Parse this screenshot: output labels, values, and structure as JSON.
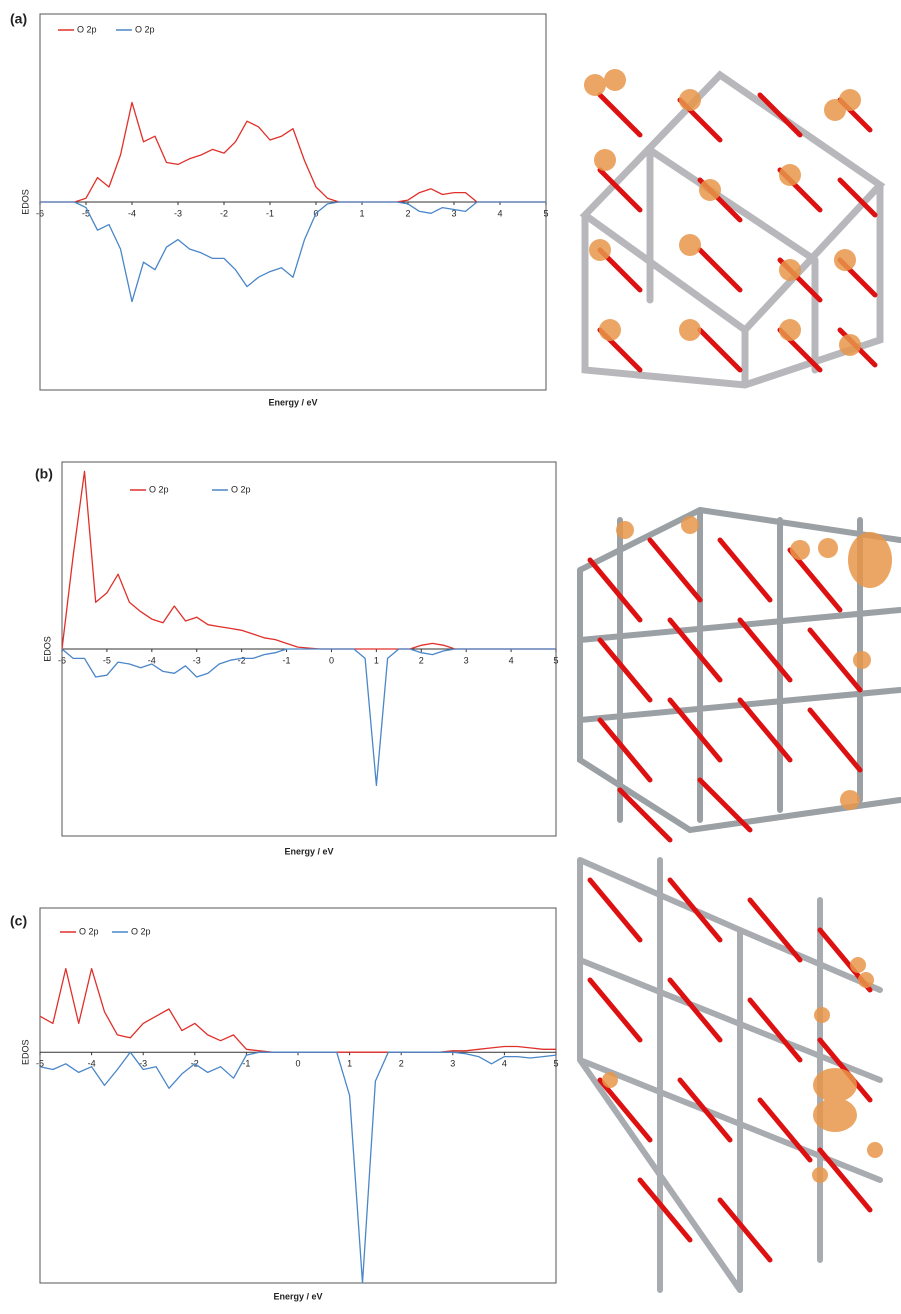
{
  "chart_data": [
    {
      "type": "line",
      "panel_label": "(a)",
      "x_label": "Energy / eV",
      "y_label": "EDOS",
      "xlim": [
        -6,
        5
      ],
      "xticks": [
        -6,
        -5,
        -4,
        -3,
        -2,
        -1,
        0,
        1,
        2,
        3,
        4,
        5
      ],
      "ylim": [
        -10,
        10
      ],
      "x": [
        -6,
        -5.75,
        -5.5,
        -5.25,
        -5,
        -4.75,
        -4.5,
        -4.25,
        -4,
        -3.75,
        -3.5,
        -3.25,
        -3,
        -2.75,
        -2.5,
        -2.25,
        -2,
        -1.75,
        -1.5,
        -1.25,
        -1,
        -0.75,
        -0.5,
        -0.25,
        0,
        0.25,
        0.5,
        0.75,
        1,
        1.25,
        1.5,
        1.75,
        2,
        2.25,
        2.5,
        2.75,
        3,
        3.25,
        3.5,
        3.75,
        4,
        4.25,
        4.5,
        4.75,
        5
      ],
      "series": [
        {
          "name": "O 2p",
          "color": "#e0302a",
          "values": [
            0,
            0,
            0,
            0,
            0.2,
            1.3,
            0.8,
            2.5,
            5.3,
            3.2,
            3.5,
            2.1,
            2,
            2.3,
            2.5,
            2.8,
            2.6,
            3.2,
            4.3,
            4,
            3.3,
            3.5,
            3.9,
            2.2,
            0.8,
            0.2,
            0,
            0,
            0,
            0,
            0,
            0,
            0.1,
            0.5,
            0.7,
            0.4,
            0.5,
            0.5,
            0,
            0,
            0,
            0,
            0,
            0,
            0
          ]
        },
        {
          "name": "O 2p",
          "color": "#4a86c8",
          "values": [
            0,
            0,
            0,
            0,
            -0.3,
            -1.5,
            -1.2,
            -2.5,
            -5.3,
            -3.2,
            -3.6,
            -2.4,
            -2,
            -2.5,
            -2.7,
            -3,
            -3,
            -3.6,
            -4.5,
            -4,
            -3.7,
            -3.5,
            -4,
            -2,
            -0.6,
            -0.1,
            0,
            0,
            0,
            0,
            0,
            0,
            -0.1,
            -0.5,
            -0.6,
            -0.3,
            -0.4,
            -0.5,
            0,
            0,
            0,
            0,
            0,
            0,
            0
          ]
        }
      ]
    },
    {
      "type": "line",
      "panel_label": "(b)",
      "x_label": "Energy / eV",
      "y_label": "EDOS",
      "xlim": [
        -6,
        5
      ],
      "xticks": [
        -6,
        -5,
        -4,
        -3,
        -2,
        -1,
        0,
        1,
        2,
        3,
        4,
        5
      ],
      "ylim": [
        -10,
        10
      ],
      "x": [
        -6,
        -5.75,
        -5.5,
        -5.25,
        -5,
        -4.75,
        -4.5,
        -4.25,
        -4,
        -3.75,
        -3.5,
        -3.25,
        -3,
        -2.75,
        -2.5,
        -2.25,
        -2,
        -1.75,
        -1.5,
        -1.25,
        -1,
        -0.75,
        -0.5,
        -0.25,
        0,
        0.25,
        0.5,
        0.75,
        1,
        1.25,
        1.5,
        1.75,
        2,
        2.25,
        2.5,
        2.75,
        3,
        3.25,
        3.5,
        3.75,
        4,
        4.25,
        4.5,
        4.75,
        5
      ],
      "series": [
        {
          "name": "O 2p",
          "color": "#e0302a",
          "values": [
            0,
            5,
            9.5,
            2.5,
            3,
            4,
            2.5,
            2,
            1.6,
            1.4,
            2.3,
            1.5,
            1.7,
            1.3,
            1.2,
            1.1,
            1,
            0.8,
            0.6,
            0.5,
            0.3,
            0.1,
            0.05,
            0,
            0,
            0,
            0,
            0,
            0,
            0,
            0,
            0,
            0.2,
            0.3,
            0.2,
            0,
            0,
            0,
            0,
            0,
            0,
            0,
            0,
            0,
            0
          ]
        },
        {
          "name": "O 2p",
          "color": "#4a86c8",
          "values": [
            0,
            -0.5,
            -0.5,
            -1.5,
            -1.4,
            -0.7,
            -0.8,
            -1,
            -0.8,
            -1.2,
            -1.3,
            -0.9,
            -1.5,
            -1.3,
            -0.8,
            -0.6,
            -0.5,
            -0.5,
            -0.3,
            -0.2,
            0,
            0,
            0,
            0,
            0,
            0,
            0,
            -0.5,
            -7.3,
            -0.5,
            0,
            0,
            -0.2,
            -0.3,
            -0.1,
            0,
            0,
            0,
            0,
            0,
            0,
            0,
            0,
            0,
            0
          ]
        }
      ]
    },
    {
      "type": "line",
      "panel_label": "(c)",
      "x_label": "Energy / eV",
      "y_label": "EDOS",
      "xlim": [
        -5,
        5
      ],
      "xticks": [
        -5,
        -4,
        -3,
        -2,
        -1,
        0,
        1,
        2,
        3,
        4,
        5
      ],
      "ylim": [
        -16,
        10
      ],
      "x": [
        -5,
        -4.75,
        -4.5,
        -4.25,
        -4,
        -3.75,
        -3.5,
        -3.25,
        -3,
        -2.75,
        -2.5,
        -2.25,
        -2,
        -1.75,
        -1.5,
        -1.25,
        -1,
        -0.75,
        -0.5,
        -0.25,
        0,
        0.25,
        0.5,
        0.75,
        1,
        1.25,
        1.5,
        1.75,
        2,
        2.25,
        2.5,
        2.75,
        3,
        3.25,
        3.5,
        3.75,
        4,
        4.25,
        4.5,
        4.75,
        5
      ],
      "series": [
        {
          "name": "O 2p",
          "color": "#e0302a",
          "values": [
            2.5,
            2,
            5.8,
            2,
            5.8,
            2.8,
            1.2,
            1,
            2,
            2.5,
            3,
            1.5,
            2,
            1.2,
            0.8,
            1.2,
            0.2,
            0.1,
            0,
            0,
            0,
            0,
            0,
            0,
            0,
            0,
            0,
            0,
            0,
            0,
            0,
            0,
            0.1,
            0.1,
            0.2,
            0.3,
            0.4,
            0.4,
            0.3,
            0.2,
            0.2
          ]
        },
        {
          "name": "O 2p",
          "color": "#4a86c8",
          "values": [
            -1,
            -1.2,
            -0.8,
            -1.4,
            -1,
            -2.3,
            -1.2,
            0,
            -1.2,
            -1,
            -2.5,
            -1.5,
            -0.8,
            -1.4,
            -1,
            -1.8,
            -0.2,
            0,
            0,
            0,
            0,
            0,
            0,
            0,
            -3,
            -16,
            -2,
            0,
            0,
            0,
            0,
            0,
            0,
            -0.1,
            -0.3,
            -0.8,
            -0.3,
            -0.3,
            -0.4,
            -0.3,
            -0.2
          ]
        }
      ]
    }
  ]
}
